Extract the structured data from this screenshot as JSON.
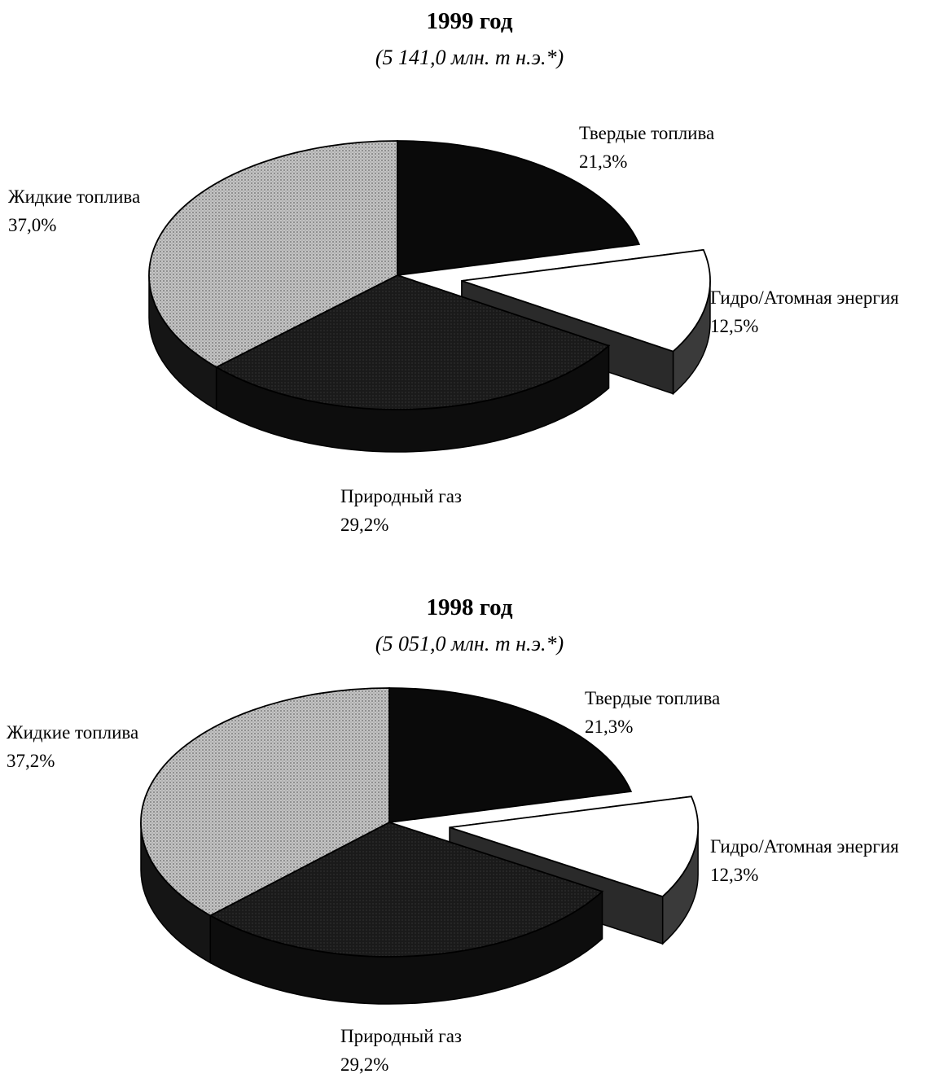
{
  "chart_data": [
    {
      "type": "pie",
      "title": "1999 год",
      "subtitle": "(5 141,0 млн. т н.э.*)",
      "slices": [
        {
          "label": "Твердые топлива",
          "value": 21.3,
          "value_label": "21,3%",
          "color": "#0a0a0a",
          "exploded": false
        },
        {
          "label": "Гидро/Атомная энергия",
          "value": 12.5,
          "value_label": "12,5%",
          "color": "#ffffff",
          "exploded": true
        },
        {
          "label": "Природный газ",
          "value": 29.2,
          "value_label": "29,2%",
          "color": "#1e1e1e",
          "exploded": false
        },
        {
          "label": "Жидкие топлива",
          "value": 37.0,
          "value_label": "37,0%",
          "color": "#b8b8b8",
          "exploded": false
        }
      ]
    },
    {
      "type": "pie",
      "title": "1998 год",
      "subtitle": "(5 051,0 млн. т н.э.*)",
      "slices": [
        {
          "label": "Твердые топлива",
          "value": 21.3,
          "value_label": "21,3%",
          "color": "#0a0a0a",
          "exploded": false
        },
        {
          "label": "Гидро/Атомная энергия",
          "value": 12.3,
          "value_label": "12,3%",
          "color": "#ffffff",
          "exploded": true
        },
        {
          "label": "Природный газ",
          "value": 29.2,
          "value_label": "29,2%",
          "color": "#1e1e1e",
          "exploded": false
        },
        {
          "label": "Жидкие топлива",
          "value": 37.2,
          "value_label": "37,2%",
          "color": "#b8b8b8",
          "exploded": false
        }
      ]
    }
  ]
}
